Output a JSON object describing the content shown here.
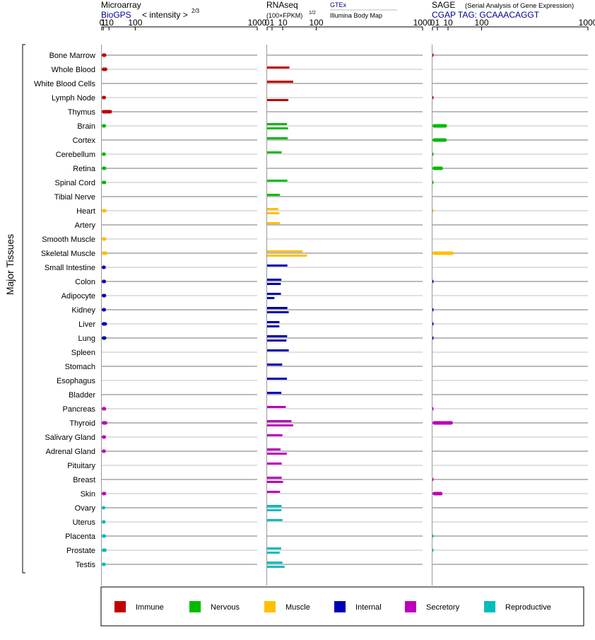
{
  "headers": {
    "microarray": {
      "title": "Microarray",
      "source": "BioGPS",
      "unit": "< intensity >",
      "unit_exponent": "2/3"
    },
    "rnaseq": {
      "title": "RNAseq",
      "unit": "(100×FPKM)",
      "unit_exponent": "1/2",
      "source_top": "GTEx",
      "source_bottom": "Illumina Body Map"
    },
    "sage": {
      "title": "SAGE",
      "subtitle": "(Serial Analysis of Gene Expression)",
      "tag": "CGAP TAG: GCAAACAGGT"
    }
  },
  "y_axis_label": "Major Tissues",
  "colors": {
    "Immune": "#c00000",
    "Nervous": "#00bb00",
    "Muscle": "#ffbf00",
    "Internal": "#0000b3",
    "Secretory": "#bb00bb",
    "Reproductive": "#00bcbc",
    "line": "#888888"
  },
  "legend": [
    "Immune",
    "Nervous",
    "Muscle",
    "Internal",
    "Secretory",
    "Reproductive"
  ],
  "chart_data": [
    {
      "type": "bar",
      "panel": "Microarray",
      "scale": "power 2/3",
      "xlim": [
        0,
        1000
      ],
      "ticks": [
        "0",
        "1",
        "10",
        "100",
        "1000"
      ],
      "categories": [
        "Bone Marrow",
        "Whole Blood",
        "White Blood Cells",
        "Lymph Node",
        "Thymus",
        "Brain",
        "Cortex",
        "Cerebellum",
        "Retina",
        "Spinal Cord",
        "Tibial Nerve",
        "Heart",
        "Artery",
        "Smooth Muscle",
        "Skeletal Muscle",
        "Small Intestine",
        "Colon",
        "Adipocyte",
        "Kidney",
        "Liver",
        "Lung",
        "Spleen",
        "Stomach",
        "Esophagus",
        "Bladder",
        "Pancreas",
        "Thyroid",
        "Salivary Gland",
        "Adrenal Gland",
        "Pituitary",
        "Breast",
        "Skin",
        "Ovary",
        "Uterus",
        "Placenta",
        "Prostate",
        "Testis"
      ],
      "groups": [
        "Immune",
        "Immune",
        "Immune",
        "Immune",
        "Immune",
        "Nervous",
        "Nervous",
        "Nervous",
        "Nervous",
        "Nervous",
        "Nervous",
        "Muscle",
        "Muscle",
        "Muscle",
        "Muscle",
        "Internal",
        "Internal",
        "Internal",
        "Internal",
        "Internal",
        "Internal",
        "Internal",
        "Internal",
        "Internal",
        "Internal",
        "Secretory",
        "Secretory",
        "Secretory",
        "Secretory",
        "Secretory",
        "Secretory",
        "Secretory",
        "Reproductive",
        "Reproductive",
        "Reproductive",
        "Reproductive",
        "Reproductive"
      ],
      "values": [
        5.2,
        6.8,
        null,
        4.6,
        17,
        4.6,
        null,
        4.3,
        5.0,
        4.9,
        null,
        5.6,
        null,
        5.2,
        7.2,
        4.2,
        4.6,
        4.9,
        4.6,
        6.2,
        5.2,
        null,
        null,
        null,
        null,
        4.9,
        6.8,
        4.6,
        4.3,
        null,
        null,
        4.9,
        3.5,
        3.9,
        4.6,
        5.6,
        4.2
      ]
    },
    {
      "type": "bar",
      "panel": "RNAseq",
      "scale": "power 1/2",
      "xlim": [
        0,
        1000
      ],
      "ticks": [
        "0",
        "1",
        "10",
        "100",
        "1000"
      ],
      "series": [
        {
          "name": "GTEx",
          "values": [
            null,
            20.5,
            28,
            null,
            null,
            16.3,
            17.5,
            8.7,
            null,
            17,
            6.7,
            5.1,
            6.7,
            null,
            52,
            17,
            8.4,
            7.9,
            17,
            6.3,
            16.6,
            19.4,
            9.4,
            16.3,
            8.4,
            14.4,
            24.6,
            9.7,
            7.4,
            8.8,
            8.8,
            6.9,
            8.7,
            9.7,
            null,
            8.2,
            9.7
          ]
        },
        {
          "name": "Illumina Body Map",
          "values": [
            null,
            null,
            null,
            18.7,
            null,
            18.1,
            null,
            null,
            null,
            null,
            null,
            6.3,
            null,
            null,
            66,
            null,
            7.8,
            2.2,
            19.3,
            6.2,
            15.5,
            null,
            null,
            null,
            null,
            null,
            28,
            null,
            16,
            null,
            10.5,
            null,
            8.4,
            null,
            null,
            6.5,
            12.7
          ]
        }
      ]
    },
    {
      "type": "bar",
      "panel": "SAGE",
      "scale": "power 1/2",
      "xlim": [
        0,
        1000
      ],
      "ticks": [
        "0",
        "1",
        "10",
        "100",
        "1000"
      ],
      "values": [
        0.015,
        null,
        null,
        0.015,
        null,
        8.8,
        8.5,
        0.01,
        4.6,
        0.01,
        null,
        0.004,
        null,
        null,
        18.8,
        null,
        0.015,
        null,
        0.015,
        0.015,
        0.015,
        null,
        null,
        null,
        null,
        0.015,
        17.3,
        null,
        null,
        null,
        0.01,
        4.2,
        null,
        null,
        0.01,
        0.01,
        null
      ]
    }
  ]
}
